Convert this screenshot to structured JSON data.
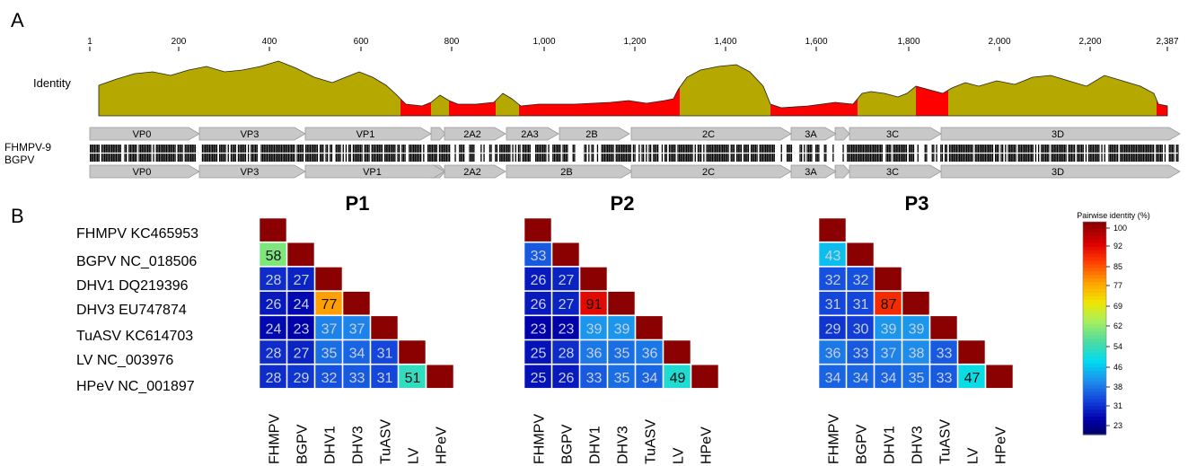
{
  "panel_a": {
    "label": "A",
    "ruler_ticks": [
      "1",
      "200",
      "400",
      "600",
      "800",
      "1,000",
      "1,200",
      "1,400",
      "1,600",
      "1,800",
      "2,000",
      "2,200",
      "2,387"
    ],
    "identity_label": "Identity",
    "genome_labels": [
      "FHMPV-9",
      "BGPV"
    ],
    "top_genes": [
      "VP0",
      "VP3",
      "VP1",
      "2A2",
      "2A3",
      "2B",
      "2C",
      "3A",
      "3C",
      "3D"
    ],
    "bottom_genes": [
      "VP0",
      "VP3",
      "VP1",
      "2A2",
      "2B",
      "2C",
      "3A",
      "3C",
      "3D"
    ],
    "colors": {
      "high": "#b5a800",
      "low": "#ff0000",
      "arrow": "#c8c8c8"
    }
  },
  "panel_b": {
    "label": "B",
    "row_labels": [
      "FHMPV KC465953",
      "BGPV NC_018506",
      "DHV1 DQ219396",
      "DHV3 EU747874",
      "TuASV KC614703",
      "LV NC_003976",
      "HPeV NC_001897"
    ],
    "col_labels": [
      "FHMPV",
      "BGPV",
      "DHV1",
      "DHV3",
      "TuASV",
      "LV",
      "HPeV"
    ],
    "matrices": [
      {
        "title": "P1",
        "values": [
          [],
          [
            58
          ],
          [
            28,
            27
          ],
          [
            26,
            24,
            77
          ],
          [
            24,
            23,
            37,
            37
          ],
          [
            28,
            27,
            35,
            34,
            31
          ],
          [
            28,
            29,
            32,
            33,
            31,
            51
          ]
        ]
      },
      {
        "title": "P2",
        "values": [
          [],
          [
            33
          ],
          [
            26,
            27
          ],
          [
            26,
            27,
            91
          ],
          [
            23,
            23,
            39,
            39
          ],
          [
            25,
            28,
            36,
            35,
            36
          ],
          [
            25,
            26,
            33,
            35,
            34,
            49
          ]
        ]
      },
      {
        "title": "P3",
        "values": [
          [],
          [
            43
          ],
          [
            32,
            32
          ],
          [
            31,
            31,
            87
          ],
          [
            29,
            30,
            39,
            39
          ],
          [
            36,
            33,
            37,
            38,
            33
          ],
          [
            34,
            34,
            34,
            35,
            33,
            47
          ]
        ]
      }
    ],
    "diagonal_color": "#8b0000",
    "legend": {
      "title": "Pairwise identity (%)",
      "ticks": [
        "100",
        "92",
        "85",
        "77",
        "69",
        "62",
        "54",
        "46",
        "38",
        "31",
        "23"
      ]
    }
  }
}
